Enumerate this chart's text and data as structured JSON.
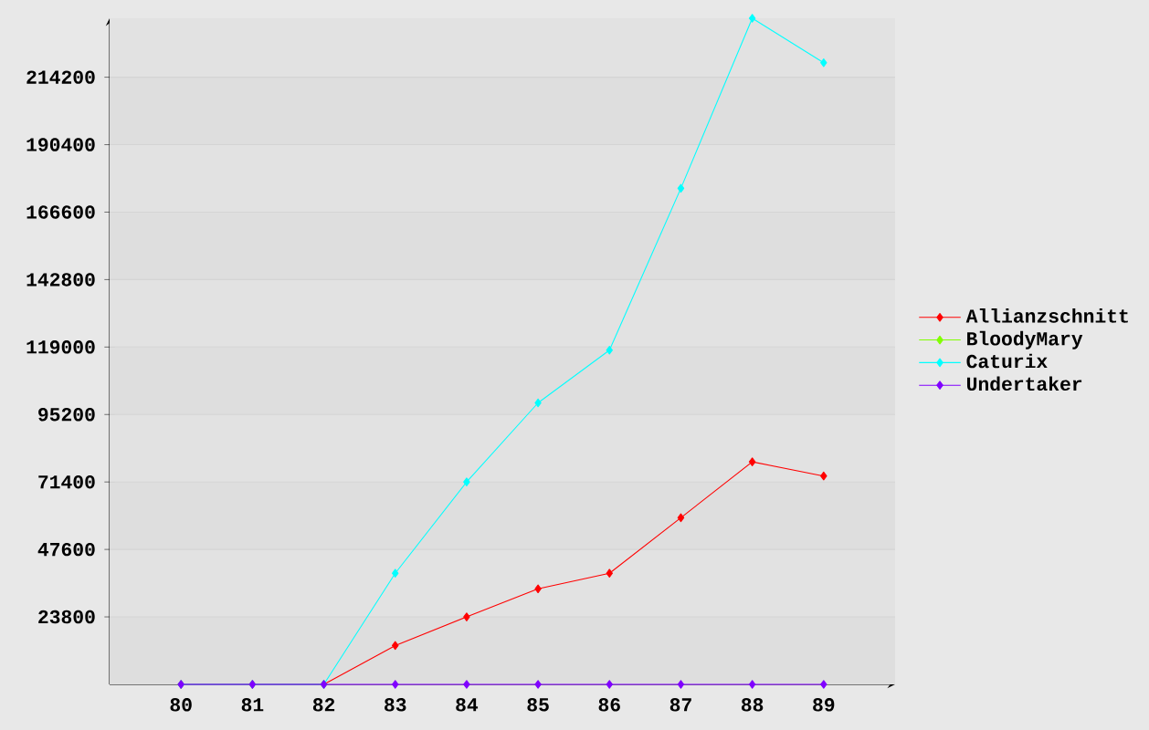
{
  "chart_data": {
    "type": "line",
    "categories": [
      "80",
      "81",
      "82",
      "83",
      "84",
      "85",
      "86",
      "87",
      "88",
      "89"
    ],
    "series": [
      {
        "name": "Allianzschnitt",
        "color": "#ff0000",
        "values": [
          0,
          0,
          0,
          13700,
          23800,
          33700,
          39200,
          58800,
          78500,
          73500
        ]
      },
      {
        "name": "BloodyMary",
        "color": "#80ff00",
        "values": [
          null,
          null,
          null,
          null,
          null,
          null,
          null,
          null,
          null,
          null
        ]
      },
      {
        "name": "Caturix",
        "color": "#00ffff",
        "values": [
          0,
          0,
          0,
          39200,
          71400,
          99300,
          117900,
          175000,
          235000,
          219300
        ]
      },
      {
        "name": "Undertaker",
        "color": "#8000ff",
        "values": [
          0,
          0,
          0,
          0,
          0,
          0,
          0,
          0,
          0,
          0
        ]
      }
    ],
    "ylim": [
      0,
      235000
    ],
    "yticks": [
      23800,
      47600,
      71400,
      95200,
      119000,
      142800,
      166600,
      190400,
      214200
    ],
    "grid": "y",
    "legend": "right",
    "marker": "diamond",
    "line_style": "solid"
  }
}
